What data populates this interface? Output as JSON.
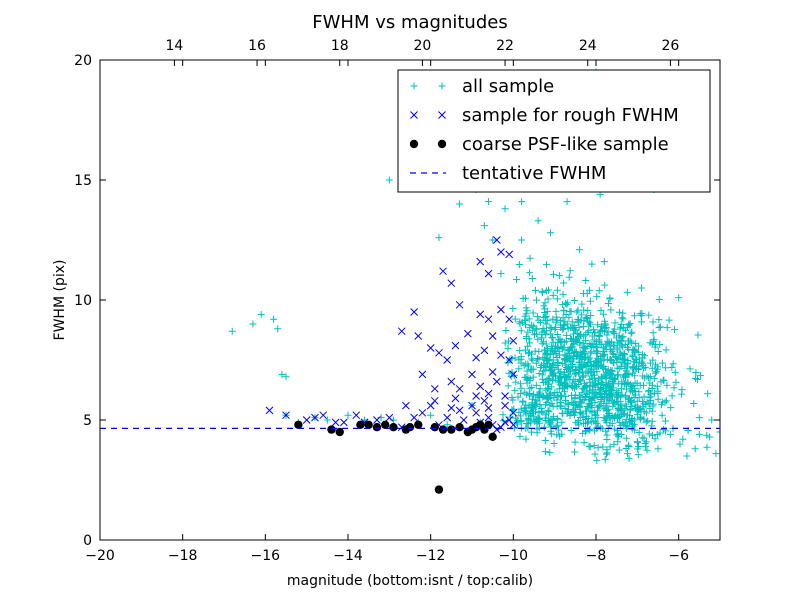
{
  "chart_data": {
    "type": "scatter",
    "title": "FWHM vs magnitudes",
    "xlabel": "magnitude (bottom:isnt / top:calib)",
    "ylabel": "FWHM (pix)",
    "xlim": [
      -20,
      -5
    ],
    "ylim": [
      0,
      20
    ],
    "xticks": [
      -20,
      -18,
      -16,
      -14,
      -12,
      -10,
      -8,
      -6
    ],
    "xtick_labels": [
      "−20",
      "−18",
      "−16",
      "−14",
      "−12",
      "−10",
      "−8",
      "−6"
    ],
    "yticks": [
      0,
      5,
      10,
      15,
      20
    ],
    "ytick_labels": [
      "0",
      "5",
      "10",
      "15",
      "20"
    ],
    "top_axis": {
      "offset": 32.2,
      "ticks": [
        14,
        16,
        18,
        20,
        22,
        24,
        26
      ],
      "tick_labels": [
        "14",
        "16",
        "18",
        "20",
        "22",
        "24",
        "26"
      ]
    },
    "grid": false,
    "legend_position": "top-right",
    "tentative_fwhm": 4.65,
    "colors": {
      "all_sample": "#00bfbf",
      "rough_sample": "#0000ff",
      "coarse_sample": "#000000",
      "tentative_line": "#0000ff"
    },
    "series": [
      {
        "name": "all sample",
        "marker": "+",
        "points": [
          [
            -16.8,
            8.7
          ],
          [
            -16.3,
            9.0
          ],
          [
            -16.1,
            9.4
          ],
          [
            -15.8,
            9.2
          ],
          [
            -15.7,
            8.8
          ],
          [
            -15.6,
            6.9
          ],
          [
            -15.5,
            6.8
          ],
          [
            -15.5,
            5.2
          ],
          [
            -15.2,
            4.9
          ],
          [
            -14.8,
            5.1
          ],
          [
            -14.5,
            5.0
          ],
          [
            -14.0,
            5.2
          ],
          [
            -13.6,
            5.0
          ],
          [
            -13.2,
            5.1
          ],
          [
            -12.9,
            5.0
          ],
          [
            -12.3,
            4.9
          ],
          [
            -12.0,
            5.2
          ],
          [
            -11.8,
            12.6
          ],
          [
            -11.6,
            4.8
          ],
          [
            -11.0,
            5.6
          ],
          [
            -10.8,
            4.9
          ],
          [
            -13.0,
            15.0
          ],
          [
            -12.3,
            15.2
          ],
          [
            -11.3,
            14.0
          ],
          [
            -11.1,
            15.4
          ],
          [
            -10.9,
            14.6
          ],
          [
            -10.7,
            13.1
          ],
          [
            -10.6,
            14.1
          ],
          [
            -10.4,
            16.3
          ],
          [
            -10.2,
            13.8
          ],
          [
            -10.0,
            15.1
          ],
          [
            -9.8,
            14.1
          ],
          [
            -9.6,
            15.3
          ],
          [
            -9.3,
            14.8
          ],
          [
            -9.0,
            15.2
          ],
          [
            -8.7,
            14.1
          ],
          [
            -8.5,
            16.1
          ],
          [
            -8.2,
            15.0
          ],
          [
            -7.9,
            14.4
          ],
          [
            -7.6,
            15.8
          ],
          [
            -7.3,
            16.6
          ],
          [
            -7.0,
            17.8
          ],
          [
            -6.6,
            14.6
          ],
          [
            -8.0,
            19.5
          ],
          [
            -7.5,
            19.2
          ],
          [
            -8.9,
            17.0
          ],
          [
            -9.4,
            13.3
          ],
          [
            -9.8,
            12.5
          ],
          [
            -10.3,
            11.1
          ],
          [
            -10.5,
            12.5
          ],
          [
            -9.1,
            12.8
          ],
          [
            -8.4,
            12.1
          ],
          [
            -7.8,
            11.6
          ],
          [
            -6.0,
            10.1
          ],
          [
            -6.9,
            10.5
          ],
          [
            -5.9,
            4.2
          ],
          [
            -5.8,
            3.5
          ],
          [
            -5.6,
            3.8
          ],
          [
            -5.5,
            4.4
          ],
          [
            -5.3,
            6.1
          ],
          [
            -5.2,
            5.0
          ],
          [
            -5.1,
            3.6
          ],
          [
            -5.0,
            4.5
          ],
          [
            -6.5,
            3.8
          ],
          [
            -7.2,
            3.4
          ],
          [
            -6.8,
            3.9
          ],
          [
            -6.2,
            4.4
          ],
          [
            -6.4,
            5.2
          ],
          [
            -7.0,
            4.1
          ],
          [
            -5.5,
            5.1
          ]
        ],
        "cluster": {
          "seed": 1234,
          "count": 950,
          "center": [
            -8.1,
            6.9
          ],
          "spread": [
            0.95,
            1.45
          ],
          "extra": [
            {
              "count": 160,
              "center": [
                -9.0,
                8.6
              ],
              "spread": [
                0.5,
                1.2
              ]
            },
            {
              "count": 150,
              "center": [
                -7.3,
                5.6
              ],
              "spread": [
                0.55,
                0.9
              ]
            },
            {
              "count": 80,
              "center": [
                -9.5,
                5.2
              ],
              "spread": [
                0.3,
                0.4
              ]
            }
          ]
        }
      },
      {
        "name": "sample for rough FWHM",
        "marker": "x",
        "points": [
          [
            -15.9,
            5.4
          ],
          [
            -15.5,
            5.2
          ],
          [
            -15.0,
            5.0
          ],
          [
            -14.8,
            5.1
          ],
          [
            -14.6,
            5.2
          ],
          [
            -14.3,
            4.9
          ],
          [
            -14.1,
            4.9
          ],
          [
            -13.8,
            5.2
          ],
          [
            -13.6,
            4.9
          ],
          [
            -13.3,
            5.0
          ],
          [
            -13.0,
            5.1
          ],
          [
            -12.7,
            4.7
          ],
          [
            -12.6,
            5.6
          ],
          [
            -12.4,
            5.1
          ],
          [
            -12.2,
            5.3
          ],
          [
            -12.0,
            5.6
          ],
          [
            -11.9,
            5.8
          ],
          [
            -11.8,
            4.8
          ],
          [
            -11.6,
            5.1
          ],
          [
            -11.5,
            5.5
          ],
          [
            -11.3,
            5.4
          ],
          [
            -11.2,
            5.0
          ],
          [
            -11.0,
            5.6
          ],
          [
            -10.9,
            5.3
          ],
          [
            -10.8,
            4.9
          ],
          [
            -10.7,
            5.8
          ],
          [
            -10.6,
            5.1
          ],
          [
            -10.5,
            4.8
          ],
          [
            -10.4,
            4.6
          ],
          [
            -10.3,
            4.7
          ],
          [
            -10.2,
            4.9
          ],
          [
            -10.1,
            5.0
          ],
          [
            -10.0,
            4.8
          ],
          [
            -11.7,
            11.2
          ],
          [
            -11.5,
            10.7
          ],
          [
            -11.3,
            9.8
          ],
          [
            -10.8,
            11.6
          ],
          [
            -10.6,
            11.1
          ],
          [
            -10.3,
            12.0
          ],
          [
            -10.1,
            11.9
          ],
          [
            -10.4,
            12.5
          ],
          [
            -10.8,
            9.4
          ],
          [
            -10.6,
            9.2
          ],
          [
            -10.5,
            8.5
          ],
          [
            -10.3,
            9.6
          ],
          [
            -10.1,
            9.2
          ],
          [
            -10.0,
            8.3
          ],
          [
            -12.4,
            9.5
          ],
          [
            -12.3,
            8.5
          ],
          [
            -12.7,
            8.7
          ],
          [
            -12.0,
            8.0
          ],
          [
            -11.8,
            7.8
          ],
          [
            -11.6,
            7.5
          ],
          [
            -11.4,
            8.1
          ],
          [
            -11.1,
            8.6
          ],
          [
            -10.9,
            7.6
          ],
          [
            -10.7,
            7.9
          ],
          [
            -10.5,
            7.0
          ],
          [
            -10.3,
            7.7
          ],
          [
            -10.1,
            7.5
          ],
          [
            -10.0,
            6.9
          ],
          [
            -11.5,
            6.6
          ],
          [
            -11.3,
            6.3
          ],
          [
            -11.0,
            6.9
          ],
          [
            -10.8,
            6.4
          ],
          [
            -10.6,
            6.1
          ],
          [
            -10.4,
            6.6
          ],
          [
            -10.2,
            6.0
          ],
          [
            -11.9,
            6.3
          ],
          [
            -12.2,
            6.9
          ],
          [
            -11.4,
            5.9
          ],
          [
            -10.9,
            6.0
          ],
          [
            -10.6,
            5.5
          ],
          [
            -10.2,
            5.6
          ],
          [
            -10.0,
            5.3
          ]
        ]
      },
      {
        "name": "coarse PSF-like sample",
        "marker": "o",
        "points": [
          [
            -15.2,
            4.8
          ],
          [
            -14.4,
            4.6
          ],
          [
            -14.2,
            4.5
          ],
          [
            -13.7,
            4.8
          ],
          [
            -13.5,
            4.8
          ],
          [
            -13.3,
            4.7
          ],
          [
            -13.1,
            4.8
          ],
          [
            -12.9,
            4.7
          ],
          [
            -12.6,
            4.6
          ],
          [
            -12.5,
            4.7
          ],
          [
            -12.3,
            4.8
          ],
          [
            -11.9,
            4.7
          ],
          [
            -11.7,
            4.6
          ],
          [
            -11.5,
            4.6
          ],
          [
            -11.3,
            4.7
          ],
          [
            -11.1,
            4.5
          ],
          [
            -11.0,
            4.6
          ],
          [
            -10.9,
            4.7
          ],
          [
            -10.8,
            4.8
          ],
          [
            -10.6,
            4.8
          ],
          [
            -10.5,
            4.3
          ],
          [
            -10.7,
            4.6
          ],
          [
            -11.8,
            2.1
          ]
        ]
      },
      {
        "name": "tentative FWHM",
        "marker": "--"
      }
    ]
  }
}
